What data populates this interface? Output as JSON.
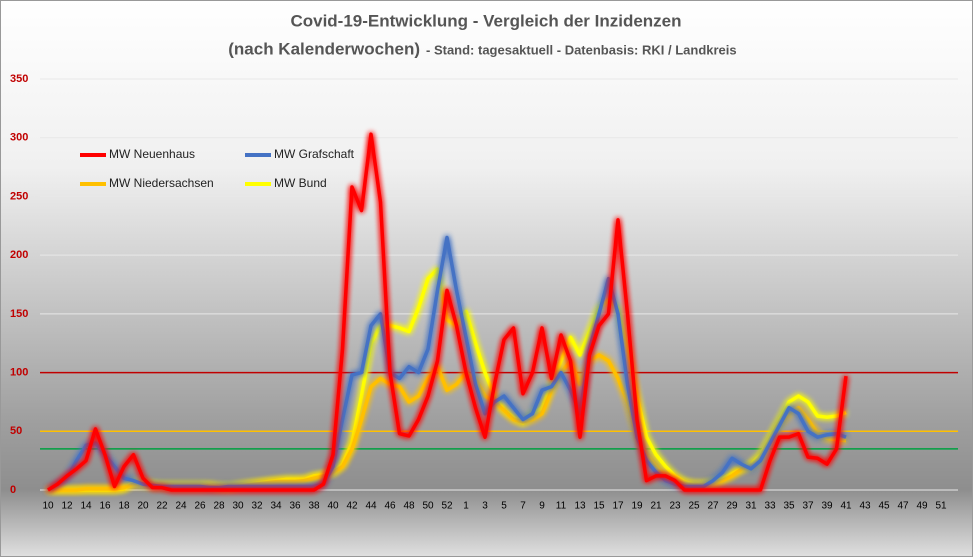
{
  "chart_data": {
    "type": "line",
    "title": "Covid-19-Entwicklung  - Vergleich der Inzidenzen",
    "subtitle": "(nach Kalenderwochen)",
    "note": "- Stand: tagesaktuell - Datenbasis: RKI / Landkreis",
    "categories": [
      10,
      null,
      12,
      null,
      14,
      null,
      16,
      null,
      18,
      null,
      20,
      null,
      22,
      null,
      24,
      null,
      26,
      null,
      28,
      null,
      30,
      null,
      32,
      null,
      34,
      null,
      36,
      null,
      38,
      null,
      40,
      null,
      42,
      null,
      44,
      null,
      46,
      null,
      48,
      null,
      50,
      null,
      52,
      null,
      1,
      null,
      3,
      null,
      5,
      null,
      7,
      null,
      9,
      null,
      11,
      null,
      13,
      null,
      15,
      null,
      17,
      null,
      19,
      null,
      21,
      null,
      23,
      null,
      25,
      null,
      27,
      null,
      29,
      null,
      31,
      null,
      33,
      null,
      35,
      null,
      37,
      null,
      39,
      null,
      41,
      null,
      43,
      null,
      45,
      null,
      47,
      null,
      49,
      null,
      51,
      null
    ],
    "series": [
      {
        "name": "MW Neuenhaus",
        "color": "#ff0000",
        "values": [
          0,
          5,
          12,
          18,
          25,
          52,
          30,
          3,
          20,
          30,
          10,
          2,
          2,
          0,
          0,
          0,
          0,
          0,
          0,
          0,
          0,
          0,
          0,
          0,
          0,
          0,
          0,
          0,
          0,
          5,
          30,
          120,
          258,
          238,
          303,
          245,
          100,
          48,
          46,
          60,
          80,
          110,
          170,
          140,
          100,
          70,
          45,
          90,
          128,
          138,
          82,
          100,
          138,
          95,
          132,
          110,
          45,
          115,
          140,
          150,
          230,
          150,
          60,
          8,
          12,
          12,
          8,
          0,
          0,
          0,
          0,
          0,
          0,
          0,
          0,
          0,
          25,
          45,
          45,
          48,
          28,
          27,
          22,
          35,
          97,
          null,
          null,
          null,
          null,
          null,
          null,
          null,
          null,
          null,
          null,
          null
        ]
      },
      {
        "name": "MW Grafschaft",
        "color": "#4472c4",
        "values": [
          0,
          5,
          10,
          25,
          38,
          40,
          30,
          20,
          10,
          8,
          5,
          4,
          3,
          3,
          3,
          3,
          3,
          2,
          2,
          3,
          3,
          3,
          3,
          3,
          3,
          3,
          3,
          3,
          3,
          5,
          20,
          60,
          98,
          100,
          140,
          150,
          100,
          95,
          105,
          100,
          120,
          170,
          215,
          170,
          130,
          90,
          65,
          75,
          80,
          70,
          60,
          65,
          85,
          88,
          100,
          85,
          65,
          120,
          150,
          180,
          150,
          90,
          45,
          25,
          15,
          8,
          5,
          3,
          3,
          3,
          8,
          15,
          27,
          22,
          18,
          25,
          40,
          55,
          70,
          65,
          50,
          45,
          47,
          48,
          45,
          null,
          null,
          null,
          null,
          null,
          null,
          null,
          null,
          null,
          null,
          null
        ]
      },
      {
        "name": "MW Niedersachsen",
        "color": "#ffc000",
        "values": [
          0,
          0,
          0,
          0,
          1,
          1,
          1,
          1,
          2,
          5,
          4,
          3,
          3,
          3,
          3,
          3,
          3,
          3,
          2,
          2,
          3,
          4,
          5,
          6,
          7,
          7,
          7,
          8,
          10,
          12,
          15,
          20,
          35,
          60,
          88,
          95,
          90,
          88,
          75,
          80,
          95,
          105,
          85,
          90,
          100,
          95,
          80,
          75,
          68,
          60,
          58,
          60,
          65,
          85,
          100,
          110,
          90,
          110,
          115,
          110,
          95,
          75,
          45,
          30,
          20,
          12,
          8,
          5,
          4,
          4,
          6,
          8,
          12,
          18,
          20,
          25,
          40,
          55,
          65,
          70,
          60,
          48,
          44,
          43,
          42,
          null,
          null,
          null,
          null,
          null,
          null,
          null,
          null,
          null,
          null,
          null
        ]
      },
      {
        "name": "MW Bund",
        "color": "#ffff00",
        "values": [
          0,
          0,
          0,
          0,
          0,
          0,
          0,
          0,
          1,
          7,
          6,
          5,
          4,
          4,
          4,
          4,
          4,
          4,
          3,
          3,
          4,
          5,
          6,
          7,
          8,
          9,
          9,
          9,
          12,
          13,
          15,
          22,
          40,
          80,
          125,
          140,
          140,
          138,
          135,
          155,
          180,
          188,
          145,
          140,
          152,
          125,
          100,
          80,
          68,
          62,
          57,
          65,
          70,
          90,
          110,
          130,
          115,
          135,
          155,
          162,
          155,
          120,
          80,
          45,
          30,
          20,
          12,
          7,
          5,
          5,
          6,
          10,
          14,
          18,
          22,
          30,
          45,
          60,
          75,
          80,
          75,
          63,
          62,
          63,
          66,
          null,
          null,
          null,
          null,
          null,
          null,
          null,
          null,
          null,
          null,
          null
        ]
      }
    ],
    "reference_lines": [
      {
        "value": 100,
        "color": "#c00000"
      },
      {
        "value": 50,
        "color": "#ffc000"
      },
      {
        "value": 35,
        "color": "#00a040"
      }
    ],
    "ylim": [
      0,
      350
    ],
    "yticks": [
      0,
      50,
      100,
      150,
      200,
      250,
      300,
      350
    ],
    "grid": true
  }
}
